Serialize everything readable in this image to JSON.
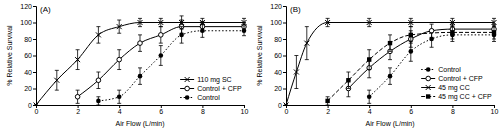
{
  "chart_data": [
    {
      "type": "line",
      "title": "(A)",
      "x_label": "Air Flow (L/min)",
      "y_label": "% Relative Survival",
      "xlim": [
        0,
        10
      ],
      "xticks": [
        0,
        2,
        4,
        6,
        8,
        10
      ],
      "ylim": [
        0,
        120
      ],
      "yticks": [
        0,
        20,
        40,
        60,
        80,
        100,
        120
      ],
      "legend": "lower right",
      "series": [
        {
          "name": "110 mg SC",
          "color": "#000000",
          "marker": "x",
          "line_style": "solid",
          "x": [
            0,
            1,
            2,
            3,
            4,
            5,
            6,
            7,
            8,
            10
          ],
          "values": [
            0,
            30,
            55,
            85,
            95,
            100,
            100,
            100,
            100,
            100
          ],
          "errors": [
            0,
            12,
            12,
            10,
            8,
            5,
            5,
            8,
            5,
            5
          ]
        },
        {
          "name": "Control + CFP",
          "color": "#000000",
          "marker": "open-circle",
          "line_style": "solid",
          "x": [
            2,
            3,
            4,
            5,
            6,
            7,
            8,
            10
          ],
          "values": [
            10,
            30,
            55,
            75,
            85,
            95,
            95,
            95
          ],
          "errors": [
            8,
            10,
            12,
            10,
            10,
            8,
            6,
            5
          ]
        },
        {
          "name": "Control",
          "color": "#000000",
          "marker": "circle",
          "line_style": "dotted",
          "x": [
            3,
            4,
            5,
            6,
            7,
            8,
            10
          ],
          "values": [
            5,
            10,
            35,
            60,
            85,
            90,
            90
          ],
          "errors": [
            5,
            8,
            10,
            12,
            10,
            8,
            6
          ]
        }
      ]
    },
    {
      "type": "line",
      "title": "(B)",
      "x_label": "Air Flow (L/min)",
      "y_label": "% Relative Survival",
      "xlim": [
        0,
        10
      ],
      "xticks": [
        0,
        2,
        4,
        6,
        8,
        10
      ],
      "ylim": [
        0,
        120
      ],
      "yticks": [
        0,
        20,
        40,
        60,
        80,
        100,
        120
      ],
      "legend": "lower right",
      "series": [
        {
          "name": "Control",
          "color": "#000000",
          "marker": "circle",
          "line_style": "dotted",
          "x": [
            4,
            5,
            6,
            7,
            8,
            10
          ],
          "values": [
            10,
            35,
            65,
            80,
            85,
            85
          ],
          "errors": [
            8,
            10,
            12,
            10,
            8,
            8
          ]
        },
        {
          "name": "Control + CFP",
          "color": "#000000",
          "marker": "open-circle",
          "line_style": "solid",
          "x": [
            3,
            4,
            5,
            6,
            7,
            8,
            10
          ],
          "values": [
            20,
            45,
            65,
            80,
            90,
            92,
            92
          ],
          "errors": [
            10,
            12,
            10,
            10,
            8,
            6,
            6
          ]
        },
        {
          "name": "45 mg CC",
          "color": "#000000",
          "marker": "x",
          "line_style": "solid",
          "x": [
            0,
            0.5,
            1,
            2,
            4,
            6,
            8,
            10
          ],
          "values": [
            0,
            40,
            75,
            100,
            100,
            100,
            100,
            100
          ],
          "errors": [
            0,
            20,
            20,
            5,
            5,
            5,
            5,
            5
          ]
        },
        {
          "name": "45 mg CC + CFP",
          "color": "#000000",
          "marker": "square",
          "line_style": "dashed",
          "x": [
            2,
            3,
            4,
            5,
            6,
            8,
            10
          ],
          "values": [
            5,
            30,
            55,
            75,
            85,
            88,
            88
          ],
          "errors": [
            5,
            10,
            12,
            10,
            10,
            8,
            8
          ]
        }
      ]
    }
  ]
}
